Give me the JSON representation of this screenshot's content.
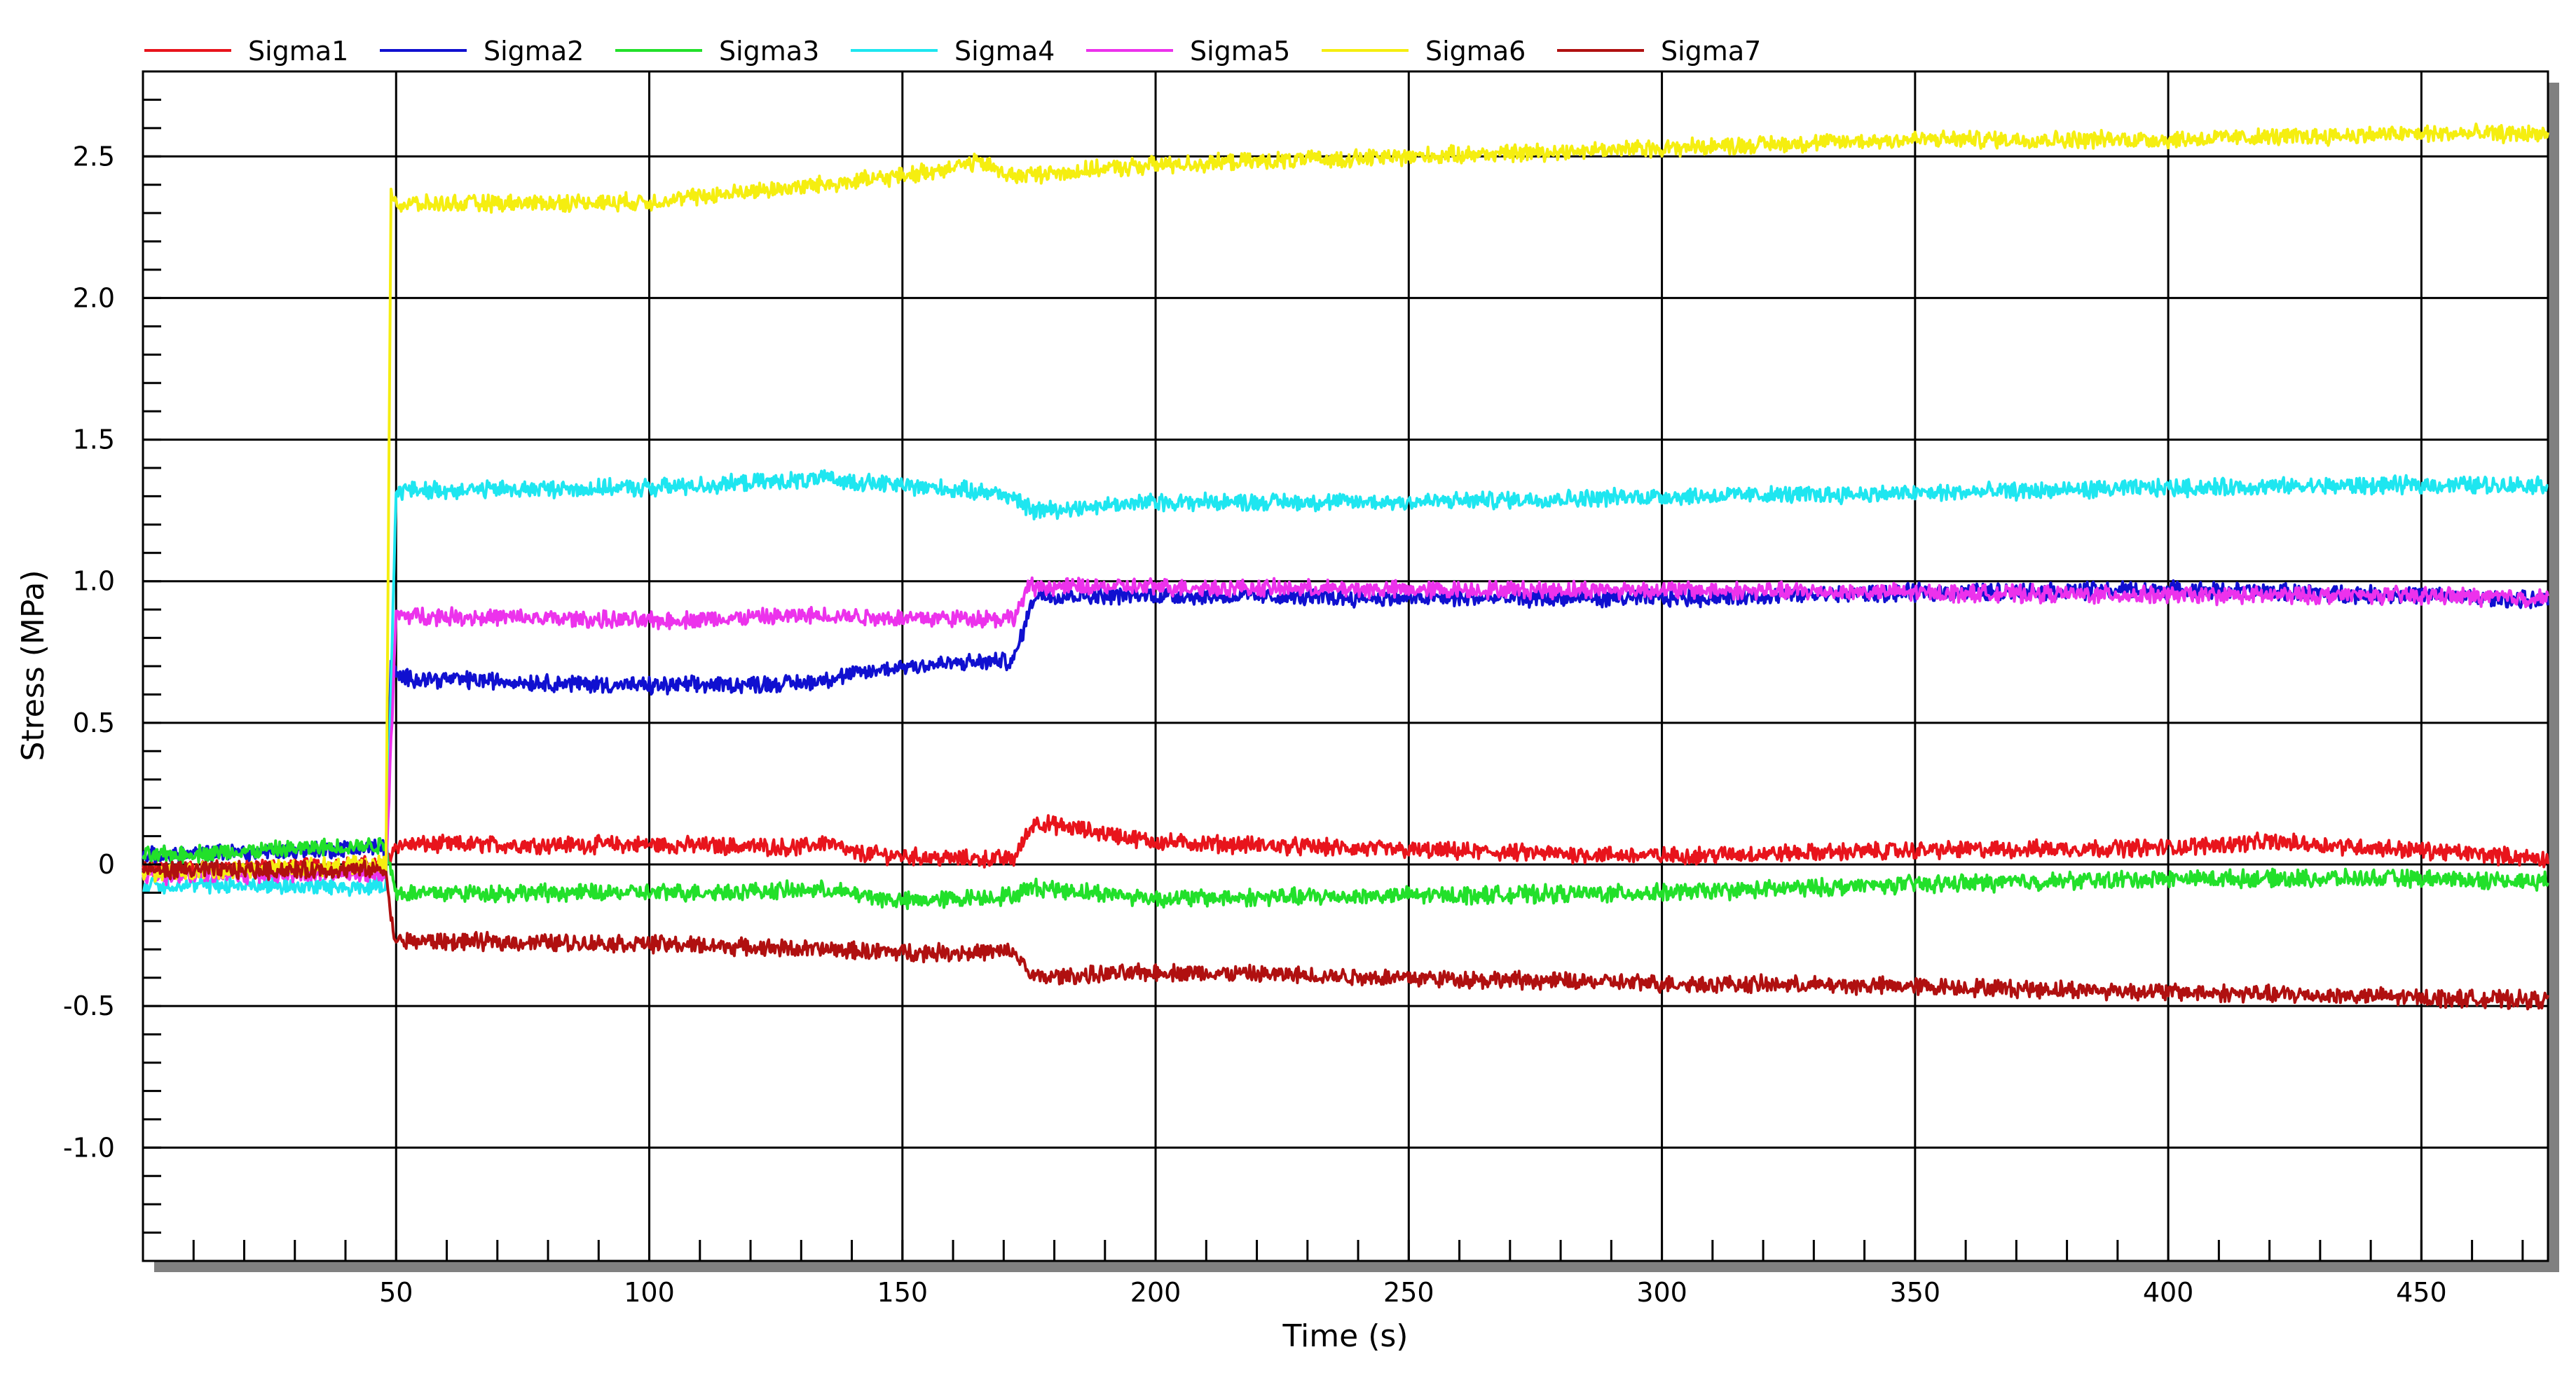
{
  "chart_data": {
    "type": "line",
    "xlabel": "Time (s)",
    "ylabel": "Stress (MPa)",
    "xlim": [
      0,
      475
    ],
    "ylim": [
      -1.4,
      2.8
    ],
    "x_ticks": [
      50,
      100,
      150,
      200,
      250,
      300,
      350,
      400,
      450
    ],
    "y_ticks": [
      -1.0,
      -0.5,
      0,
      0.5,
      1.0,
      1.5,
      2.0,
      2.5
    ],
    "y_tick_labels": [
      "-1.0",
      "-0.5",
      "0",
      "0.5",
      "1.0",
      "1.5",
      "2.0",
      "2.5"
    ],
    "x_tick_labels": [
      "50",
      "100",
      "150",
      "200",
      "250",
      "300",
      "350",
      "400",
      "450"
    ],
    "grid": true,
    "legend_position": "top",
    "series": [
      {
        "name": "Sigma1",
        "color": "#e8141c",
        "x": [
          0,
          48,
          50,
          100,
          130,
          135,
          140,
          160,
          172,
          176,
          200,
          250,
          300,
          350,
          400,
          420,
          450,
          475
        ],
        "values": [
          -0.02,
          0.0,
          0.07,
          0.07,
          0.06,
          0.08,
          0.04,
          0.02,
          0.02,
          0.15,
          0.08,
          0.05,
          0.03,
          0.05,
          0.06,
          0.08,
          0.05,
          0.02
        ]
      },
      {
        "name": "Sigma2",
        "color": "#1010d0",
        "x": [
          0,
          48,
          49,
          50,
          100,
          130,
          150,
          172,
          176,
          200,
          250,
          300,
          350,
          400,
          450,
          475
        ],
        "values": [
          0.03,
          0.06,
          0.72,
          0.66,
          0.63,
          0.64,
          0.7,
          0.72,
          0.95,
          0.95,
          0.94,
          0.94,
          0.96,
          0.97,
          0.95,
          0.93
        ]
      },
      {
        "name": "Sigma3",
        "color": "#22e02a",
        "x": [
          0,
          48,
          50,
          100,
          135,
          150,
          172,
          176,
          200,
          250,
          300,
          350,
          400,
          450,
          475
        ],
        "values": [
          0.03,
          0.07,
          -0.1,
          -0.1,
          -0.09,
          -0.13,
          -0.11,
          -0.08,
          -0.12,
          -0.11,
          -0.1,
          -0.07,
          -0.05,
          -0.05,
          -0.06
        ]
      },
      {
        "name": "Sigma4",
        "color": "#1ee6f0",
        "x": [
          0,
          48,
          50,
          100,
          135,
          170,
          176,
          200,
          250,
          300,
          350,
          400,
          450,
          475
        ],
        "values": [
          -0.07,
          -0.08,
          1.32,
          1.33,
          1.36,
          1.31,
          1.25,
          1.28,
          1.28,
          1.3,
          1.31,
          1.33,
          1.34,
          1.34
        ]
      },
      {
        "name": "Sigma5",
        "color": "#ec32ec",
        "x": [
          0,
          48,
          50,
          100,
          135,
          150,
          172,
          175,
          200,
          250,
          300,
          350,
          400,
          450,
          475
        ],
        "values": [
          -0.04,
          -0.03,
          0.88,
          0.86,
          0.88,
          0.87,
          0.87,
          0.98,
          0.98,
          0.97,
          0.97,
          0.96,
          0.95,
          0.95,
          0.94
        ]
      },
      {
        "name": "Sigma6",
        "color": "#f5ee10",
        "x": [
          0,
          48,
          49,
          50,
          100,
          150,
          165,
          172,
          200,
          250,
          300,
          350,
          400,
          450,
          475
        ],
        "values": [
          -0.03,
          0.0,
          2.4,
          2.33,
          2.34,
          2.43,
          2.48,
          2.43,
          2.47,
          2.5,
          2.53,
          2.56,
          2.56,
          2.58,
          2.58
        ]
      },
      {
        "name": "Sigma7",
        "color": "#b01010",
        "x": [
          0,
          48,
          49,
          50,
          100,
          150,
          172,
          176,
          200,
          250,
          300,
          350,
          400,
          450,
          475
        ],
        "values": [
          -0.02,
          -0.02,
          -0.2,
          -0.27,
          -0.28,
          -0.31,
          -0.31,
          -0.4,
          -0.38,
          -0.4,
          -0.42,
          -0.43,
          -0.45,
          -0.47,
          -0.48
        ]
      }
    ]
  }
}
